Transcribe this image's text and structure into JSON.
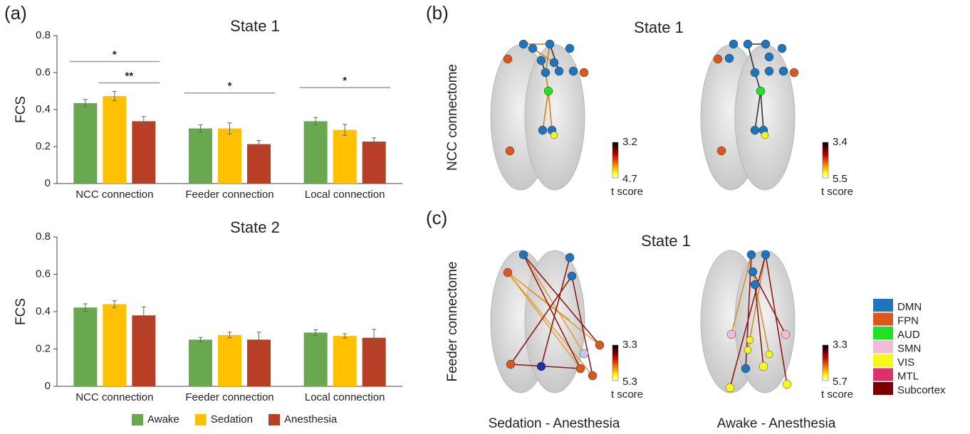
{
  "panel_labels": [
    "(a)",
    "(b)",
    "(c)"
  ],
  "chart_data": [
    {
      "type": "bar",
      "title": "State 1",
      "y_label": "FCS",
      "categories": [
        "NCC connection",
        "Feeder connection",
        "Local connection"
      ],
      "series": [
        {
          "name": "Awake",
          "color": "#6aa84f",
          "values": [
            0.435,
            0.298,
            0.337
          ],
          "errors": [
            0.02,
            0.02,
            0.02
          ]
        },
        {
          "name": "Sedation",
          "color": "#ffc000",
          "values": [
            0.473,
            0.298,
            0.29
          ],
          "errors": [
            0.025,
            0.03,
            0.03
          ]
        },
        {
          "name": "Anesthesia",
          "color": "#b83e26",
          "values": [
            0.337,
            0.213,
            0.227
          ],
          "errors": [
            0.025,
            0.02,
            0.02
          ]
        }
      ],
      "ylim": [
        0,
        0.8
      ],
      "yticks": [
        0,
        0.2,
        0.4,
        0.6,
        0.8
      ],
      "significance": [
        {
          "label": "*",
          "category": "NCC connection",
          "groups": [
            "Awake",
            "Anesthesia"
          ]
        },
        {
          "label": "**",
          "category": "NCC connection",
          "groups": [
            "Sedation",
            "Anesthesia"
          ]
        },
        {
          "label": "*",
          "category": "Feeder connection",
          "groups": [
            "Awake",
            "Anesthesia"
          ]
        },
        {
          "label": "*",
          "category": "Local connection",
          "groups": [
            "Awake",
            "Anesthesia"
          ]
        }
      ]
    },
    {
      "type": "bar",
      "title": "State 2",
      "y_label": "FCS",
      "categories": [
        "NCC connection",
        "Feeder connection",
        "Local connection"
      ],
      "series": [
        {
          "name": "Awake",
          "color": "#6aa84f",
          "values": [
            0.422,
            0.25,
            0.288
          ],
          "errors": [
            0.02,
            0.012,
            0.015
          ]
        },
        {
          "name": "Sedation",
          "color": "#ffc000",
          "values": [
            0.44,
            0.275,
            0.27
          ],
          "errors": [
            0.018,
            0.015,
            0.012
          ]
        },
        {
          "name": "Anesthesia",
          "color": "#b83e26",
          "values": [
            0.38,
            0.25,
            0.26
          ],
          "errors": [
            0.045,
            0.04,
            0.045
          ]
        }
      ],
      "ylim": [
        0,
        0.8
      ],
      "yticks": [
        0,
        0.2,
        0.4,
        0.6,
        0.8
      ]
    }
  ],
  "brain_panels": {
    "b": {
      "title": "State 1",
      "row_label": "NCC connectome"
    },
    "c": {
      "title": "State 1",
      "row_label": "Feeder connectome",
      "column_labels": [
        "Sedation - Anesthesia",
        "Awake - Anesthesia"
      ]
    }
  },
  "colorbars": [
    {
      "range": [
        3.2,
        4.7
      ],
      "label": "t score"
    },
    {
      "range": [
        3.4,
        5.5
      ],
      "label": "t score"
    },
    {
      "range": [
        3.3,
        5.3
      ],
      "label": "t score"
    },
    {
      "range": [
        3.3,
        5.7
      ],
      "label": "t score"
    }
  ],
  "networks": [
    {
      "name": "DMN",
      "color": "#1f74bd"
    },
    {
      "name": "FPN",
      "color": "#d9581e"
    },
    {
      "name": "AUD",
      "color": "#22e022"
    },
    {
      "name": "SMN",
      "color": "#f2bcd8"
    },
    {
      "name": "VIS",
      "color": "#f7f71e"
    },
    {
      "name": "MTL",
      "color": "#e0306a"
    },
    {
      "name": "Subcortex",
      "color": "#7a0000"
    }
  ]
}
